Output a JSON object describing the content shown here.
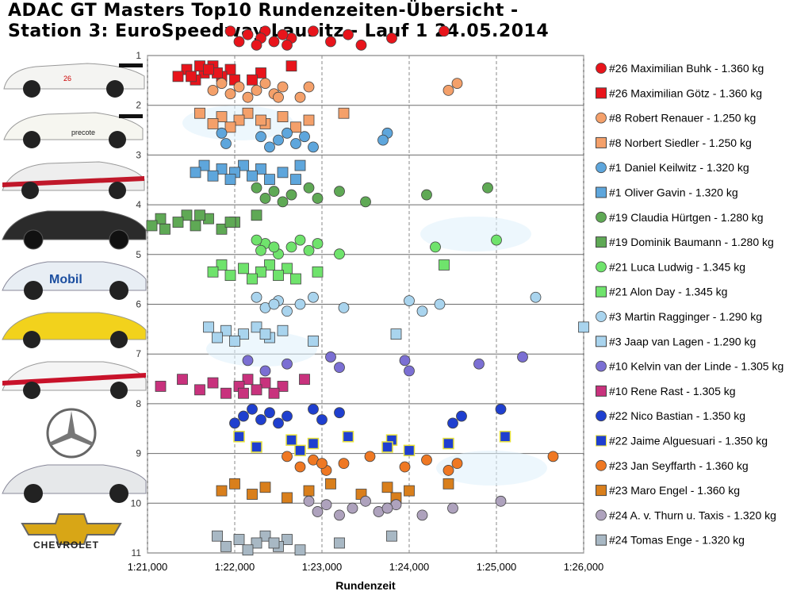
{
  "title_line1": "ADAC GT Masters Top10 Rundenzeiten-Übersicht -",
  "title_line2": "Station 3: EuroSpeedway Lausitz - Lauf 1 24.05.2014",
  "brands": {
    "chevrolet": "CHEVROLET"
  },
  "chart_data": {
    "type": "scatter",
    "title": "ADAC GT Masters Top10 Rundenzeiten-Übersicht - Station 3: EuroSpeedway Lausitz - Lauf 1 24.05.2014",
    "xlabel": "Rundenzeit",
    "ylabel": "",
    "xlim": [
      81.0,
      86.0
    ],
    "ylim": [
      1,
      11
    ],
    "y_reversed": true,
    "grid": true,
    "legend_position": "right",
    "xticks": [
      81,
      82,
      83,
      84,
      85,
      86
    ],
    "xtick_labels": [
      "1:21,000",
      "1:22,000",
      "1:23,000",
      "1:24,000",
      "1:25,000",
      "1:26,000"
    ],
    "yticks": [
      1,
      2,
      3,
      4,
      5,
      6,
      7,
      8,
      9,
      10,
      11
    ],
    "ytick_labels": [
      "1",
      "2",
      "3",
      "4",
      "5",
      "6",
      "7",
      "8",
      "9",
      "10",
      "11"
    ],
    "series": [
      {
        "name": "#26 Maximilian Buhk - 1.360 kg",
        "color": "#e8141b",
        "marker": "circle",
        "band": 1,
        "offset": -0.35,
        "x": [
          84.4,
          83.8,
          83.45,
          83.3,
          83.1,
          82.9,
          82.65,
          82.6,
          82.55,
          82.45,
          82.35,
          82.3,
          82.25,
          82.15,
          82.05,
          81.95
        ]
      },
      {
        "name": "#26 Maximilian Götz - 1.360 kg",
        "color": "#e8141b",
        "marker": "square",
        "band": 1,
        "offset": 0.35,
        "x": [
          82.65,
          82.3,
          82.2,
          81.95,
          81.85,
          81.75,
          81.65,
          81.55,
          81.45,
          81.35,
          81.6,
          81.8,
          82.0,
          81.7,
          81.5
        ]
      },
      {
        "name": "#8 Robert Renauer - 1.250 kg",
        "color": "#f4a06a",
        "marker": "circle",
        "band": 2,
        "offset": -0.3,
        "x": [
          84.55,
          84.45,
          82.75,
          82.55,
          82.45,
          82.35,
          82.25,
          82.15,
          82.05,
          81.95,
          81.85,
          81.75,
          82.5,
          82.85
        ]
      },
      {
        "name": "#8 Norbert Siedler - 1.250 kg",
        "color": "#f4a06a",
        "marker": "square",
        "band": 2,
        "offset": 0.3,
        "x": [
          83.25,
          82.85,
          82.7,
          82.55,
          82.35,
          82.15,
          82.05,
          81.95,
          81.85,
          81.75,
          81.6,
          82.3
        ]
      },
      {
        "name": "#1 Daniel Keilwitz - 1.320 kg",
        "color": "#5ea6dc",
        "marker": "circle",
        "band": 3,
        "offset": -0.3,
        "x": [
          83.75,
          83.7,
          82.9,
          82.8,
          82.7,
          82.6,
          82.5,
          82.4,
          82.3,
          81.9,
          81.85
        ]
      },
      {
        "name": "#1 Oliver Gavin - 1.320 kg",
        "color": "#5ea6dc",
        "marker": "square",
        "band": 3,
        "offset": 0.35,
        "x": [
          82.75,
          82.55,
          82.4,
          82.3,
          82.2,
          82.1,
          82.0,
          81.95,
          81.85,
          81.75,
          81.65,
          81.55,
          82.7
        ]
      },
      {
        "name": "#19 Claudia Hürtgen - 1.280 kg",
        "color": "#5fa955",
        "marker": "circle",
        "band": 4,
        "offset": -0.2,
        "x": [
          84.9,
          84.2,
          83.5,
          83.2,
          82.95,
          82.85,
          82.65,
          82.55,
          82.45,
          82.35,
          82.25
        ]
      },
      {
        "name": "#19 Dominik Baumann - 1.280 kg",
        "color": "#5fa955",
        "marker": "square",
        "band": 4,
        "offset": 0.35,
        "x": [
          82.25,
          82.0,
          81.85,
          81.7,
          81.55,
          81.45,
          81.35,
          81.2,
          81.15,
          81.05,
          81.6,
          81.95
        ]
      },
      {
        "name": "#21 Luca Ludwig - 1.345 kg",
        "color": "#6fe36c",
        "marker": "circle",
        "band": 5,
        "offset": -0.15,
        "x": [
          85.0,
          84.3,
          83.2,
          82.95,
          82.85,
          82.75,
          82.65,
          82.5,
          82.35,
          82.3,
          82.25,
          82.45
        ]
      },
      {
        "name": "#21 Alon Day - 1.345 kg",
        "color": "#6fe36c",
        "marker": "square",
        "band": 5,
        "offset": 0.35,
        "x": [
          84.4,
          82.95,
          82.7,
          82.6,
          82.5,
          82.4,
          82.3,
          82.2,
          82.1,
          81.95,
          81.85,
          81.75
        ]
      },
      {
        "name": "#3 Martin Ragginger - 1.290 kg",
        "color": "#a9d4ee",
        "marker": "circle",
        "band": 6,
        "offset": 0.0,
        "x": [
          85.45,
          84.35,
          84.15,
          84.0,
          83.25,
          82.9,
          82.75,
          82.6,
          82.5,
          82.35,
          82.25,
          82.45
        ]
      },
      {
        "name": "#3 Jaap van Lagen - 1.290 kg",
        "color": "#a9d4ee",
        "marker": "square",
        "band": 6,
        "offset": 0.6,
        "x": [
          86.0,
          83.85,
          82.9,
          82.55,
          82.4,
          82.25,
          82.1,
          82.0,
          81.9,
          81.8,
          81.7,
          82.35
        ]
      },
      {
        "name": "#10 Kelvin van der Linde - 1.305 kg",
        "color": "#7b6fd3",
        "marker": "circle",
        "band": 7,
        "offset": 0.2,
        "x": [
          85.3,
          84.8,
          84.0,
          83.95,
          83.2,
          83.1,
          82.6,
          82.35,
          82.15
        ]
      },
      {
        "name": "#10 Rene Rast - 1.305 kg",
        "color": "#c8327d",
        "marker": "square",
        "band": 7,
        "offset": 0.65,
        "x": [
          82.8,
          82.55,
          82.45,
          82.35,
          82.25,
          82.15,
          82.05,
          81.9,
          81.75,
          81.6,
          81.4,
          81.15,
          82.1
        ]
      },
      {
        "name": "#22 Nico Bastian - 1.350 kg",
        "color": "#1f3fcf",
        "marker": "circle",
        "band": 8,
        "offset": 0.25,
        "x": [
          85.05,
          84.6,
          84.5,
          83.2,
          83.0,
          82.9,
          82.6,
          82.5,
          82.4,
          82.3,
          82.2,
          82.1,
          82.0
        ]
      },
      {
        "name": "#22 Jaime Alguesuari - 1.350 kg",
        "color": "#1f3fcf",
        "marker": "square",
        "band": 8,
        "offset": 0.8,
        "x": [
          85.1,
          84.45,
          84.0,
          83.8,
          83.75,
          83.3,
          82.9,
          82.75,
          82.65,
          82.25,
          82.05
        ]
      },
      {
        "name": "#23 Jan Seyffarth - 1.360 kg",
        "color": "#ef7823",
        "marker": "circle",
        "band": 9,
        "offset": 0.2,
        "x": [
          85.65,
          84.55,
          84.45,
          84.2,
          83.95,
          83.55,
          83.25,
          83.05,
          82.9,
          82.75,
          82.6,
          83.0
        ]
      },
      {
        "name": "#23 Maro Engel - 1.360 kg",
        "color": "#d97f1c",
        "marker": "square",
        "band": 9,
        "offset": 0.75,
        "x": [
          84.45,
          84.0,
          83.85,
          83.75,
          83.45,
          83.1,
          82.85,
          82.6,
          82.35,
          82.2,
          82.0,
          81.85
        ]
      },
      {
        "name": "#24 A. v. Thurn u. Taxis - 1.320 kg",
        "color": "#aea2bd",
        "marker": "circle",
        "band": 10,
        "offset": 0.1,
        "x": [
          85.05,
          84.5,
          84.15,
          83.85,
          83.65,
          83.5,
          83.35,
          83.2,
          83.05,
          82.95,
          82.85,
          83.75
        ]
      },
      {
        "name": "#24 Tomas Enge - 1.320 kg",
        "color": "#a8b8c4",
        "marker": "square",
        "band": 10,
        "offset": 0.8,
        "x": [
          83.8,
          83.2,
          82.75,
          82.6,
          82.5,
          82.35,
          82.25,
          82.15,
          82.05,
          81.9,
          81.8,
          82.45
        ]
      }
    ]
  }
}
